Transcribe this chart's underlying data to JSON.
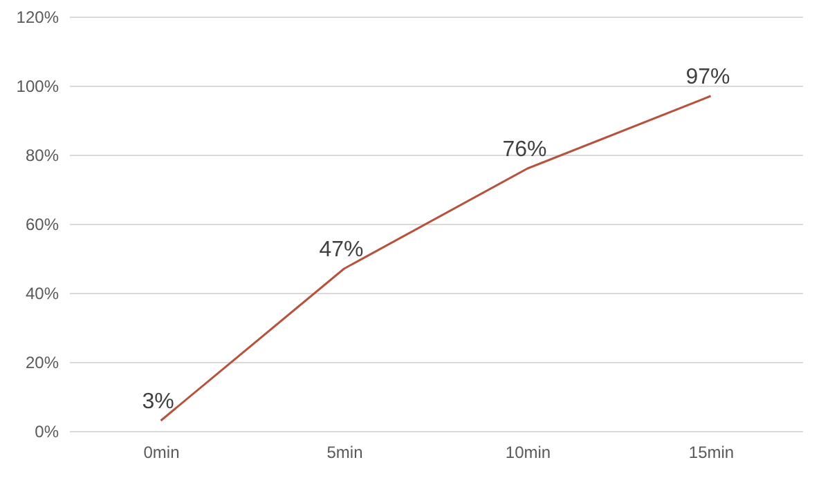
{
  "chart_data": {
    "type": "line",
    "categories": [
      "0min",
      "5min",
      "10min",
      "15min"
    ],
    "series": [
      {
        "color": "#b5533c",
        "values": [
          3,
          47,
          76,
          97
        ]
      }
    ],
    "value_labels": [
      "3%",
      "47%",
      "76%",
      "97%"
    ],
    "ylim": [
      0,
      120
    ],
    "yticks": [
      {
        "value": 0,
        "label": "0%"
      },
      {
        "value": 20,
        "label": "20%"
      },
      {
        "value": 40,
        "label": "40%"
      },
      {
        "value": 60,
        "label": "60%"
      },
      {
        "value": 80,
        "label": "80%"
      },
      {
        "value": 100,
        "label": "100%"
      },
      {
        "value": 120,
        "label": "120%"
      }
    ],
    "grid": "y",
    "marker": "none",
    "line_style": "solid"
  }
}
